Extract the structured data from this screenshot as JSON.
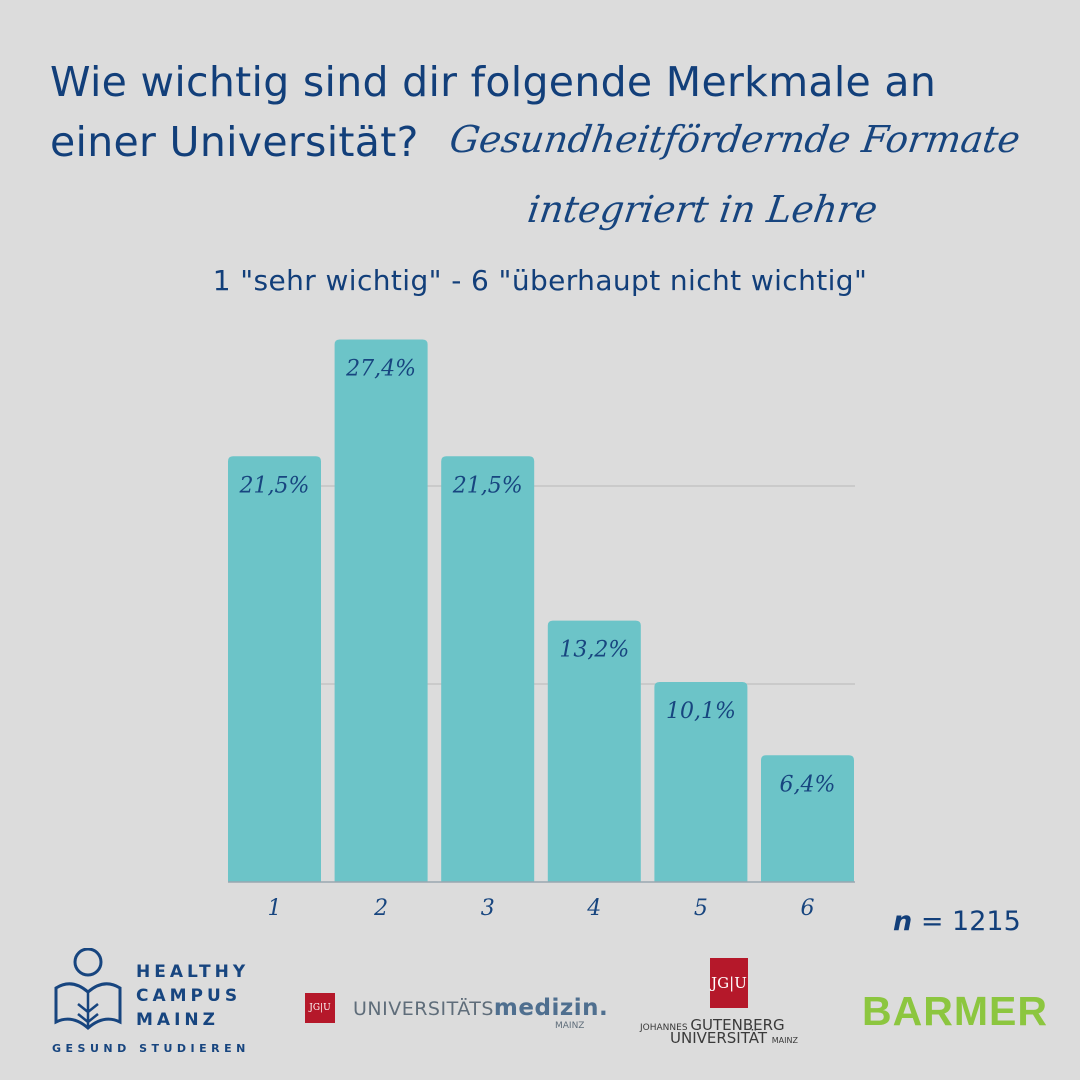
{
  "title": "Wie wichtig sind dir folgende Merkmale an einer Universität?",
  "topic_line1": "Gesundheitfördernde Formate",
  "topic_line2": "integriert in Lehre",
  "subtitle": "1 \"sehr wichtig\" - 6 \"überhaupt nicht wichtig\"",
  "sample": {
    "symbol": "n",
    "text": "= 1215"
  },
  "colors": {
    "bar": "#6cc4c8",
    "text": "#123f7a",
    "grid": "#b9b9b9"
  },
  "chart_data": {
    "type": "bar",
    "categories": [
      "1",
      "2",
      "3",
      "4",
      "5",
      "6"
    ],
    "values": [
      21.5,
      27.4,
      21.5,
      13.2,
      10.1,
      6.4
    ],
    "value_labels": [
      "21,5%",
      "27,4%",
      "21,5%",
      "13,2%",
      "10,1%",
      "6,4%"
    ],
    "ylim": [
      0,
      30
    ],
    "grid": true
  },
  "logos": {
    "healthy_campus": {
      "lines": [
        "HEALTHY",
        "CAMPUS",
        "MAINZ"
      ],
      "tagline": "GESUND STUDIEREN",
      "icon": "reading-person-icon"
    },
    "unimedizin": {
      "badge": "JG|U",
      "text_regular": "UNIVERSITÄTS",
      "text_bold": "medizin.",
      "sub": "MAINZ"
    },
    "gutenberg": {
      "badge": "JG|U",
      "line1_small": "JOHANNES",
      "line1_big": "GUTENBERG",
      "line2_big": "UNIVERSITÄT",
      "line2_small": "MAINZ"
    },
    "barmer": {
      "text": "BARMER"
    }
  }
}
